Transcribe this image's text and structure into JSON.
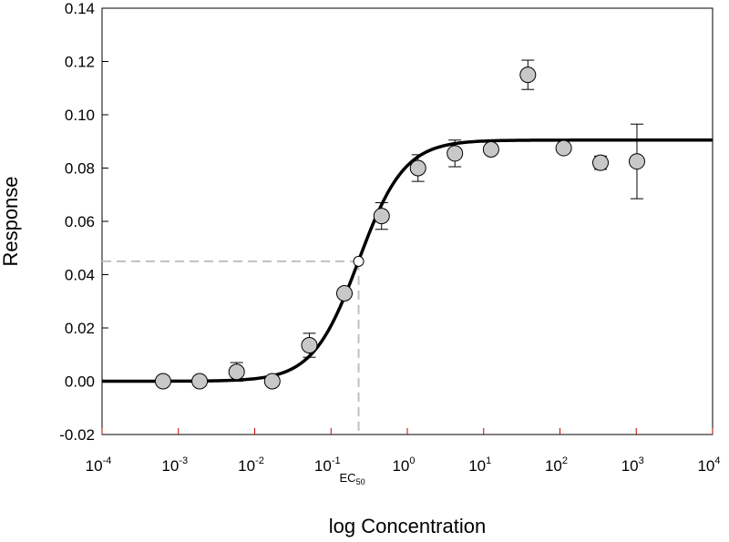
{
  "chart_data": {
    "type": "scatter",
    "title": "",
    "xlabel": "log Concentration",
    "ylabel": "Response",
    "xscale": "log",
    "xlim": [
      0.0001,
      10000
    ],
    "ylim": [
      -0.02,
      0.14
    ],
    "x_ticks": [
      {
        "base": "10",
        "exp": "-4"
      },
      {
        "base": "10",
        "exp": "-3"
      },
      {
        "base": "10",
        "exp": "-2"
      },
      {
        "base": "10",
        "exp": "-1"
      },
      {
        "base": "10",
        "exp": "0"
      },
      {
        "base": "10",
        "exp": "1"
      },
      {
        "base": "10",
        "exp": "2"
      },
      {
        "base": "10",
        "exp": "3"
      },
      {
        "base": "10",
        "exp": "4"
      }
    ],
    "y_ticks": [
      "-0.02",
      "0.00",
      "0.02",
      "0.04",
      "0.06",
      "0.08",
      "0.10",
      "0.12",
      "0.14"
    ],
    "grid": false,
    "points": [
      {
        "x": 0.00063,
        "y": 0.0,
        "err": 0.0
      },
      {
        "x": 0.0019,
        "y": 0.0,
        "err": 0.0
      },
      {
        "x": 0.0058,
        "y": 0.0035,
        "err": 0.0035
      },
      {
        "x": 0.017,
        "y": 0.0,
        "err": 0.0
      },
      {
        "x": 0.052,
        "y": 0.0135,
        "err": 0.0045
      },
      {
        "x": 0.15,
        "y": 0.033,
        "err": 0.0
      },
      {
        "x": 0.46,
        "y": 0.062,
        "err": 0.005
      },
      {
        "x": 1.38,
        "y": 0.08,
        "err": 0.005
      },
      {
        "x": 4.2,
        "y": 0.0855,
        "err": 0.005
      },
      {
        "x": 12.5,
        "y": 0.087,
        "err": 0.0
      },
      {
        "x": 38,
        "y": 0.115,
        "err": 0.0055
      },
      {
        "x": 112,
        "y": 0.0875,
        "err": 0.0
      },
      {
        "x": 340,
        "y": 0.082,
        "err": 0.0025
      },
      {
        "x": 1020,
        "y": 0.0825,
        "err": 0.014
      }
    ],
    "fit": {
      "model": "sigmoid",
      "bottom": 0.0,
      "top": 0.0905,
      "ec50": 0.23,
      "hill": 1.45
    },
    "ec50_marker": {
      "x": 0.23,
      "y": 0.045,
      "label": "EC",
      "label_sub": "50"
    },
    "colors": {
      "point_fill": "#c8c8c8",
      "point_stroke": "#000000",
      "fit_line": "#000000",
      "guide_line": "#c0c0c0",
      "axis_tick_red": "#c00000"
    }
  }
}
